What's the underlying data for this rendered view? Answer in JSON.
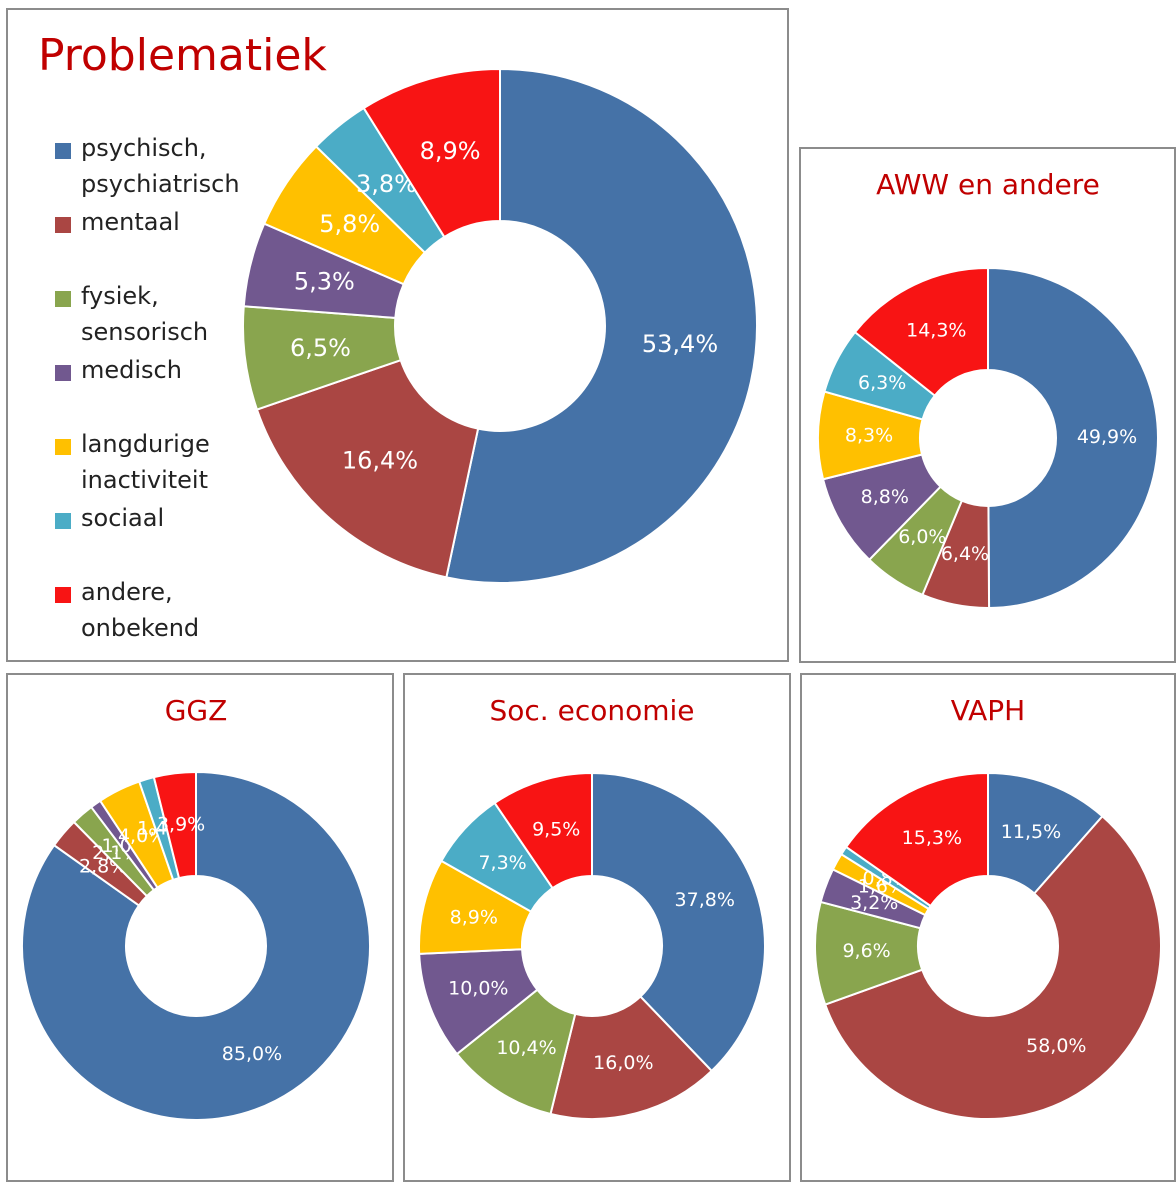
{
  "chart_data": [
    {
      "type": "donut",
      "title": "Problematiek",
      "categories": [
        "psychisch, psychiatrisch",
        "mentaal",
        "fysiek, sensorisch",
        "medisch",
        "langdurige inactiviteit",
        "sociaal",
        "andere, onbekend"
      ],
      "values": [
        53.4,
        16.4,
        6.5,
        5.3,
        5.8,
        3.8,
        8.9
      ],
      "value_labels": [
        "53,4%",
        "16,4%",
        "6,5%",
        "5,3%",
        "5,8%",
        "3,8%",
        "8,9%"
      ],
      "colors": [
        "#4572a7",
        "#aa4643",
        "#89a54e",
        "#71588f",
        "#ffc000",
        "#4bacc6",
        "#f81414"
      ],
      "legend": "left"
    },
    {
      "type": "donut",
      "title": "AWW en andere",
      "values": [
        49.9,
        6.4,
        6.0,
        8.8,
        8.3,
        6.3,
        14.3
      ],
      "value_labels": [
        "49,9%",
        "6,4%",
        "6,0%",
        "8,8%",
        "8,3%",
        "6,3%",
        "14,3%"
      ],
      "colors": [
        "#4572a7",
        "#aa4643",
        "#89a54e",
        "#71588f",
        "#ffc000",
        "#4bacc6",
        "#f81414"
      ]
    },
    {
      "type": "donut",
      "title": "GGZ",
      "values": [
        85.0,
        2.8,
        2.1,
        1.0,
        4.0,
        1.4,
        3.9
      ],
      "value_labels": [
        "85,0%",
        "2,8%",
        "2,1%",
        "1,0%",
        "4,0%",
        "1,4%",
        "3,9%"
      ],
      "colors": [
        "#4572a7",
        "#aa4643",
        "#89a54e",
        "#71588f",
        "#ffc000",
        "#4bacc6",
        "#f81414"
      ]
    },
    {
      "type": "donut",
      "title": "Soc. economie",
      "values": [
        37.8,
        16.0,
        10.4,
        10.0,
        8.9,
        7.3,
        9.5
      ],
      "value_labels": [
        "37,8%",
        "16,0%",
        "10,4%",
        "10,0%",
        "8,9%",
        "7,3%",
        "9,5%"
      ],
      "colors": [
        "#4572a7",
        "#aa4643",
        "#89a54e",
        "#71588f",
        "#ffc000",
        "#4bacc6",
        "#f81414"
      ]
    },
    {
      "type": "donut",
      "title": "VAPH",
      "values": [
        11.5,
        58.0,
        9.6,
        3.2,
        1.6,
        0.8,
        15.3
      ],
      "value_labels": [
        "11,5%",
        "58,0%",
        "9,6%",
        "3,2%",
        "1,6%",
        "0,8%",
        "15,3%"
      ],
      "colors": [
        "#4572a7",
        "#aa4643",
        "#89a54e",
        "#71588f",
        "#ffc000",
        "#4bacc6",
        "#f81414"
      ]
    }
  ]
}
